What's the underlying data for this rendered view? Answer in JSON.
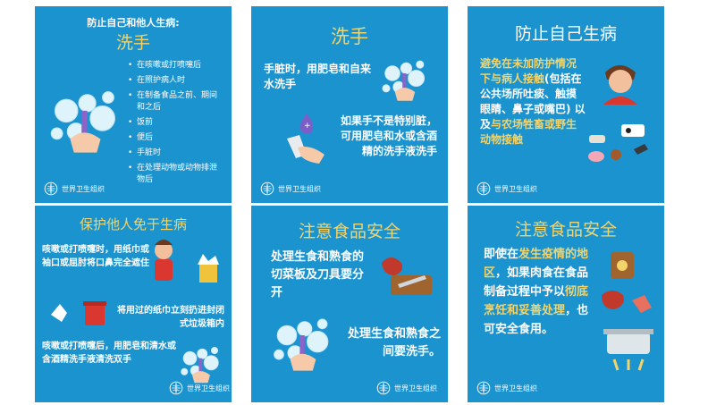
{
  "who_label": "世界卫生组织",
  "cards": [
    {
      "pre_title": "防止自己和他人生病:",
      "title": "洗手",
      "bullets": [
        "在咳嗽或打喷嚏后",
        "在照护病人时",
        "在制备食品之前、期间和之后",
        "饭前",
        "便后",
        "手脏时",
        "在处理动物或动物排泄物后"
      ]
    },
    {
      "title": "洗手",
      "text1": "手脏时，用肥皂和自来水洗手",
      "text2": "如果手不是特别脏，可用肥皂和水或含酒精的洗手液洗手"
    },
    {
      "title": "防止自己生病",
      "highlight": "避免在未加防护情况下与病人接触",
      "plain": "(包括在公共场所吐痰、触摸眼睛、鼻子或嘴巴) 以及",
      "highlight2": "与农场牲畜或野生动物接触"
    },
    {
      "title": "保护他人免于生病",
      "text1": "咳嗽或打喷嚏时，用纸巾或袖口或屈肘将口鼻完全遮住",
      "text2": "将用过的纸巾立刻扔进封闭式垃圾箱内",
      "text3": "咳嗽或打喷嚏后，用肥皂和清水或含酒精洗手液清洗双手"
    },
    {
      "title": "注意食品安全",
      "text1": "处理生食和熟食的切菜板及刀具要分开",
      "text2": "处理生食和熟食之间要洗手。"
    },
    {
      "title": "注意食品安全",
      "p1": "即使在",
      "h1": "发生疫情的地区",
      "p2": "，如果肉食在食品制备过程中予以",
      "h2": "彻底烹饪和妥善处理",
      "p3": "，也可安全食用。"
    }
  ]
}
